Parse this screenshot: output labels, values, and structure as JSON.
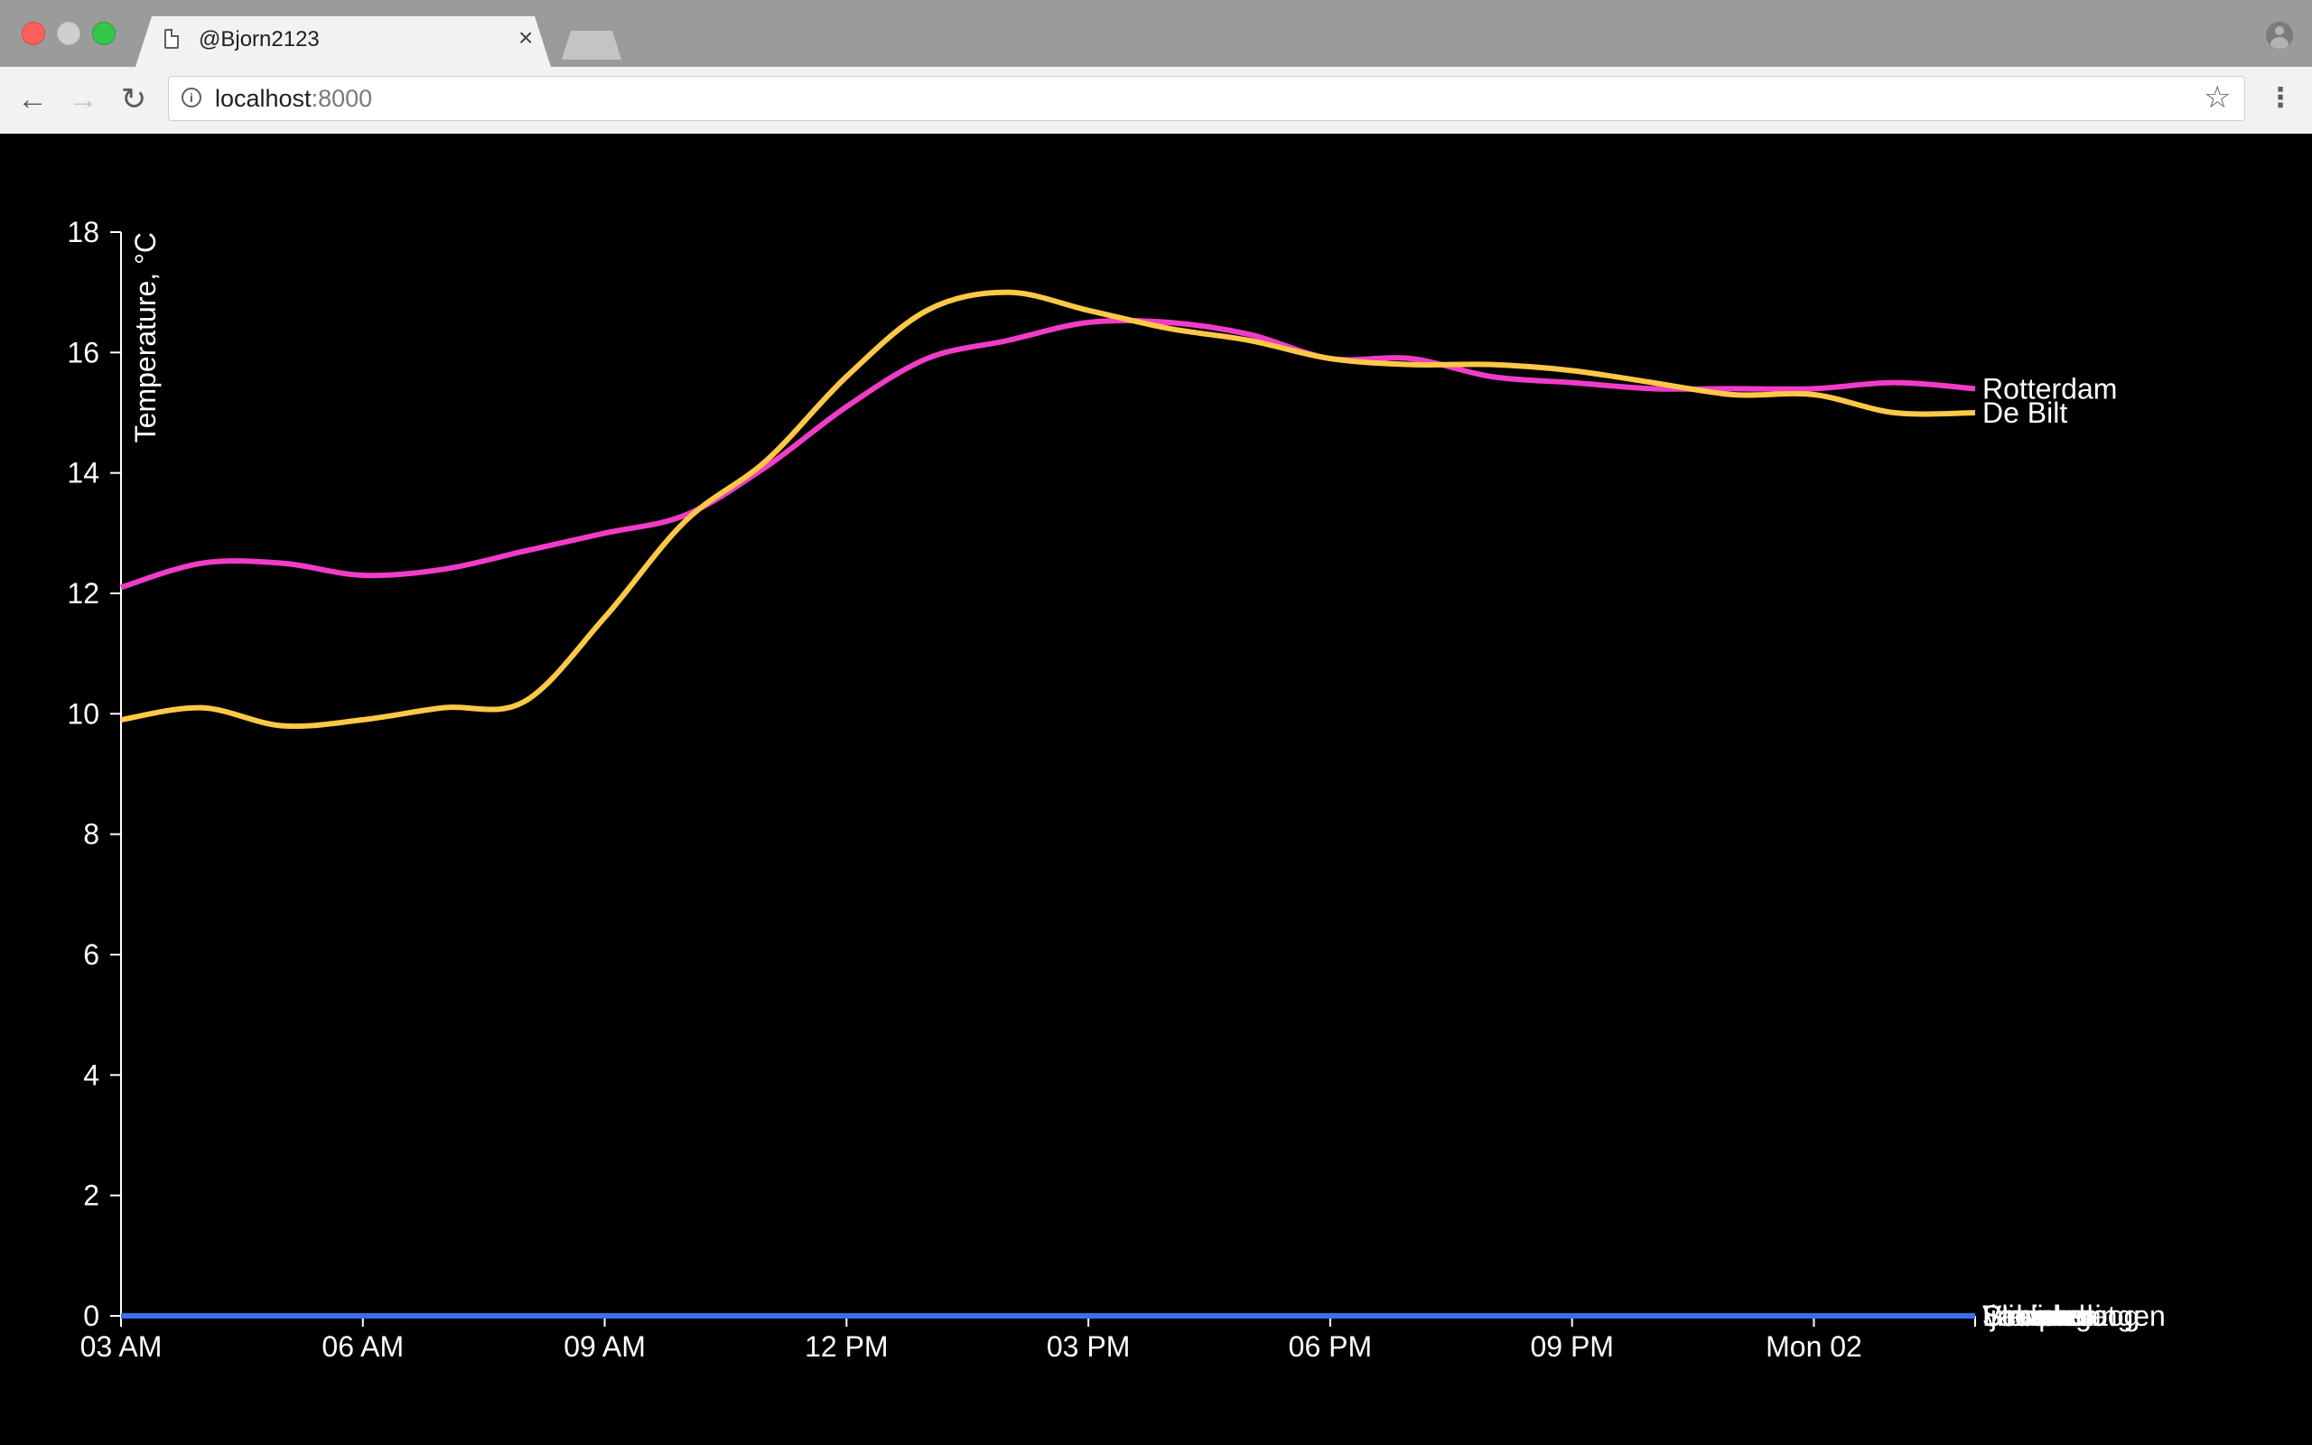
{
  "browser": {
    "tab_title": "@Bjorn2123",
    "tab_close": "×",
    "url_host": "localhost",
    "url_port": ":8000",
    "back_icon": "arrow-left-icon",
    "forward_icon": "arrow-right-icon",
    "reload_icon": "reload-icon",
    "info_icon": "info-icon",
    "star_icon": "star-icon",
    "menu_icon": "kebab-menu-icon"
  },
  "chart_data": {
    "type": "line",
    "ylabel": "Temperature, °C",
    "xlabel": "",
    "ylim": [
      0,
      18
    ],
    "y_ticks": [
      0,
      2,
      4,
      6,
      8,
      10,
      12,
      14,
      16,
      18
    ],
    "x_ticks": [
      "03 AM",
      "06 AM",
      "09 AM",
      "12 PM",
      "03 PM",
      "06 PM",
      "09 PM",
      "Mon 02"
    ],
    "x": [
      "03:00",
      "04:00",
      "05:00",
      "06:00",
      "07:00",
      "08:00",
      "09:00",
      "10:00",
      "11:00",
      "12:00",
      "13:00",
      "14:00",
      "15:00",
      "16:00",
      "17:00",
      "18:00",
      "19:00",
      "20:00",
      "21:00",
      "22:00",
      "23:00",
      "00:00",
      "01:00",
      "02:00"
    ],
    "xlim": [
      "03:00",
      "02:00"
    ],
    "grid": false,
    "legend": "inline labels at line ends",
    "background": "#000000",
    "series": [
      {
        "name": "Rotterdam",
        "color": "#f03cc8",
        "values": [
          12.1,
          12.5,
          12.5,
          12.3,
          12.4,
          12.7,
          13.0,
          13.3,
          14.1,
          15.1,
          15.9,
          16.2,
          16.5,
          16.5,
          16.3,
          15.9,
          15.9,
          15.6,
          15.5,
          15.4,
          15.4,
          15.4,
          15.5,
          15.4
        ]
      },
      {
        "name": "De Bilt",
        "color": "#ffc846",
        "values": [
          9.9,
          10.1,
          9.8,
          9.9,
          10.1,
          10.2,
          11.6,
          13.2,
          14.2,
          15.6,
          16.7,
          17.0,
          16.7,
          16.4,
          16.2,
          15.9,
          15.8,
          15.8,
          15.7,
          15.5,
          15.3,
          15.3,
          15.0,
          15.0
        ]
      },
      {
        "name": "Schiphol",
        "color": "#3c6ef0",
        "values": [
          0,
          0,
          0,
          0,
          0,
          0,
          0,
          0,
          0,
          0,
          0,
          0,
          0,
          0,
          0,
          0,
          0,
          0,
          0,
          0,
          0,
          0,
          0,
          0
        ]
      },
      {
        "name": "Stavoren",
        "color": "#3c6ef0",
        "values": [
          0,
          0,
          0,
          0,
          0,
          0,
          0,
          0,
          0,
          0,
          0,
          0,
          0,
          0,
          0,
          0,
          0,
          0,
          0,
          0,
          0,
          0,
          0,
          0
        ]
      },
      {
        "name": "Lauwersoog",
        "color": "#3c6ef0",
        "values": [
          0,
          0,
          0,
          0,
          0,
          0,
          0,
          0,
          0,
          0,
          0,
          0,
          0,
          0,
          0,
          0,
          0,
          0,
          0,
          0,
          0,
          0,
          0,
          0
        ]
      },
      {
        "name": "Schaar",
        "color": "#3c6ef0",
        "values": [
          0,
          0,
          0,
          0,
          0,
          0,
          0,
          0,
          0,
          0,
          0,
          0,
          0,
          0,
          0,
          0,
          0,
          0,
          0,
          0,
          0,
          0,
          0,
          0
        ]
      },
      {
        "name": "Ijmuiden",
        "color": "#3c6ef0",
        "values": [
          0,
          0,
          0,
          0,
          0,
          0,
          0,
          0,
          0,
          0,
          0,
          0,
          0,
          0,
          0,
          0,
          0,
          0,
          0,
          0,
          0,
          0,
          0,
          0
        ]
      },
      {
        "name": "Scheveningen",
        "color": "#3c6ef0",
        "values": [
          0,
          0,
          0,
          0,
          0,
          0,
          0,
          0,
          0,
          0,
          0,
          0,
          0,
          0,
          0,
          0,
          0,
          0,
          0,
          0,
          0,
          0,
          0,
          0
        ]
      },
      {
        "name": "Vlieland",
        "color": "#3c6ef0",
        "values": [
          0,
          0,
          0,
          0,
          0,
          0,
          0,
          0,
          0,
          0,
          0,
          0,
          0,
          0,
          0,
          0,
          0,
          0,
          0,
          0,
          0,
          0,
          0,
          0
        ]
      },
      {
        "name": "Stroomgat",
        "color": "#3c6ef0",
        "values": [
          0,
          0,
          0,
          0,
          0,
          0,
          0,
          0,
          0,
          0,
          0,
          0,
          0,
          0,
          0,
          0,
          0,
          0,
          0,
          0,
          0,
          0,
          0,
          0
        ]
      }
    ]
  }
}
